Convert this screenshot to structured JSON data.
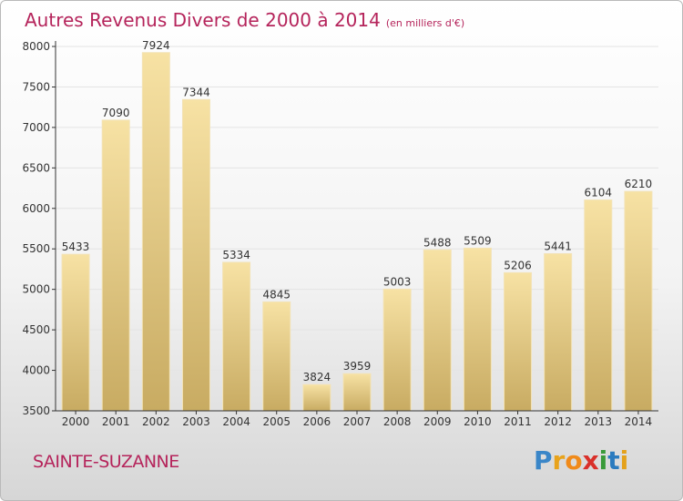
{
  "title": "Autres Revenus Divers de 2000 à 2014",
  "title_unit": "(en milliers d'€)",
  "location": "SAINTE-SUZANNE",
  "brand": {
    "letters": [
      "P",
      "r",
      "o",
      "x",
      "i",
      "t",
      "i"
    ],
    "colors": [
      "#3a86c8",
      "#e8a31c",
      "#f08a1a",
      "#d9302a",
      "#3a9a3a",
      "#2a7bbf",
      "#e4a11b"
    ]
  },
  "colors": {
    "title": "#b5245b",
    "bar_top": "#f7e2a4",
    "bar_bottom": "#c8ab62",
    "axis": "#333333",
    "grid": "#e6e6e6"
  },
  "chart_data": {
    "type": "bar",
    "title": "Autres Revenus Divers de 2000 à 2014",
    "subtitle": "(en milliers d'€)",
    "categories": [
      "2000",
      "2001",
      "2002",
      "2003",
      "2004",
      "2005",
      "2006",
      "2007",
      "2008",
      "2009",
      "2010",
      "2011",
      "2012",
      "2013",
      "2014"
    ],
    "values": [
      5433,
      7090,
      7924,
      7344,
      5334,
      4845,
      3824,
      3959,
      5003,
      5488,
      5509,
      5206,
      5441,
      6104,
      6210
    ],
    "ylim": [
      3500,
      8000
    ],
    "yticks": [
      3500,
      4000,
      4500,
      5000,
      5500,
      6000,
      6500,
      7000,
      7500,
      8000
    ],
    "grid": true,
    "xlabel": "",
    "ylabel": ""
  }
}
